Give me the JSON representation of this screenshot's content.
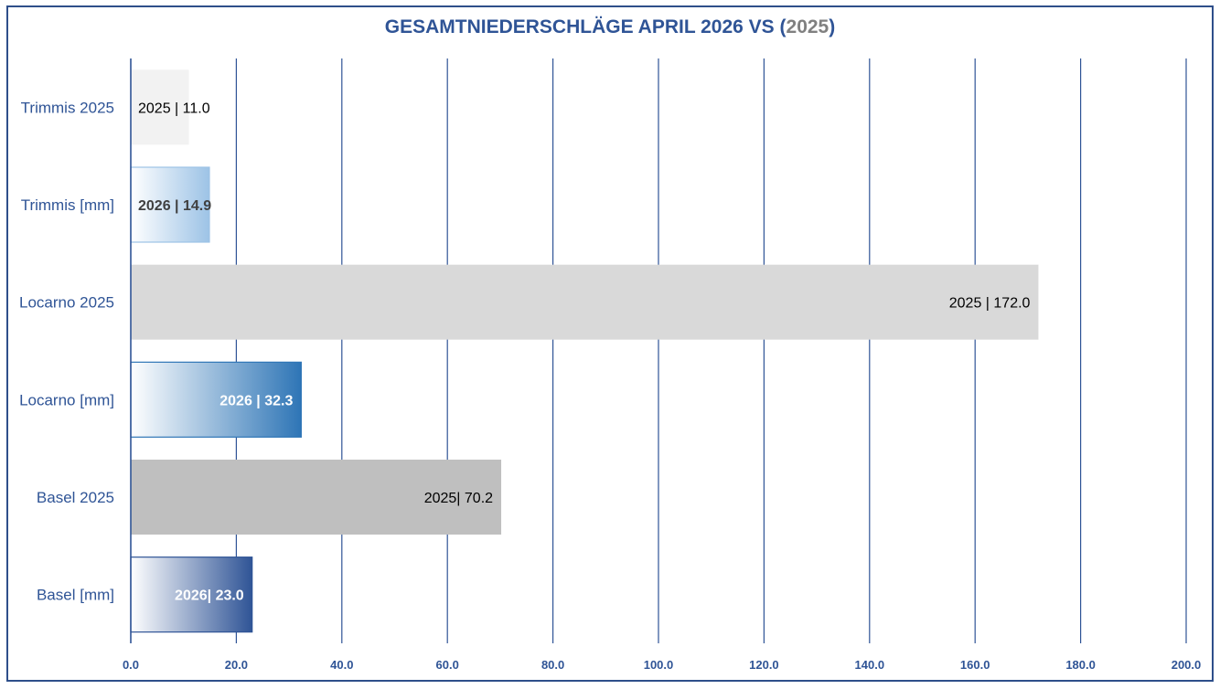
{
  "title": {
    "main": "GESAMTNIEDERSCHLÄGE APRIL 2026 VS (",
    "year": "2025",
    "close": ")"
  },
  "chart_data": {
    "type": "bar",
    "orientation": "horizontal",
    "title": "GESAMTNIEDERSCHLÄGE APRIL 2026 VS (2025)",
    "xlim": [
      0,
      200
    ],
    "ticks": [
      0,
      20,
      40,
      60,
      80,
      100,
      120,
      140,
      160,
      180,
      200
    ],
    "tick_labels": [
      "0.0",
      "20.0",
      "40.0",
      "60.0",
      "80.0",
      "100.0",
      "120.0",
      "140.0",
      "160.0",
      "180.0",
      "200.0"
    ],
    "grid": "vertical",
    "categories": [
      "Trimmis 2025",
      "Trimmis [mm]",
      "Locarno 2025",
      "Locarno [mm]",
      "Basel 2025",
      "Basel [mm]"
    ],
    "values": [
      11.0,
      14.9,
      172.0,
      32.3,
      70.2,
      23.0
    ],
    "data_labels": [
      "2025 | 11.0",
      "2026 | 14.9",
      "2025 | 172.0",
      "2026 | 32.3",
      "2025| 70.2",
      "2026| 23.0"
    ],
    "bar_styles": [
      {
        "fill": "#f2f2f2",
        "gradient": false,
        "label_color": "#000000",
        "label_bold": false,
        "label_pos": "inside-start"
      },
      {
        "fill": "#9dc3e6",
        "gradient": true,
        "label_color": "#404040",
        "label_bold": true,
        "label_pos": "inside-start"
      },
      {
        "fill": "#d9d9d9",
        "gradient": false,
        "label_color": "#000000",
        "label_bold": false,
        "label_pos": "inside-end"
      },
      {
        "fill": "#2e75b6",
        "gradient": true,
        "label_color": "#ffffff",
        "label_bold": true,
        "label_pos": "inside-end"
      },
      {
        "fill": "#bfbfbf",
        "gradient": false,
        "label_color": "#000000",
        "label_bold": false,
        "label_pos": "inside-end"
      },
      {
        "fill": "#2f5496",
        "gradient": true,
        "label_color": "#ffffff",
        "label_bold": true,
        "label_pos": "inside-end"
      }
    ],
    "colors": {
      "axis": "#2f5496",
      "grid": "#2f5496",
      "frame": "#2e4f8a"
    }
  }
}
